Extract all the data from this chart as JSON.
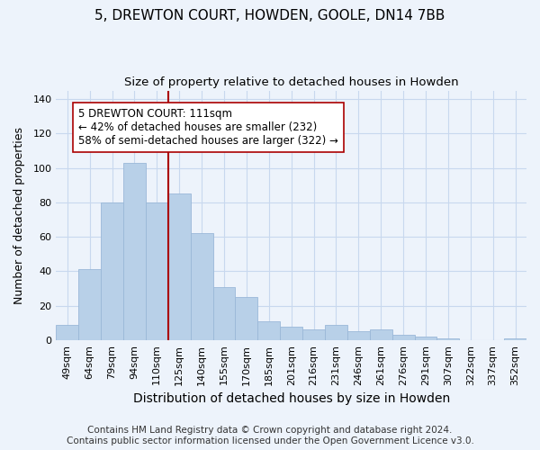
{
  "title": "5, DREWTON COURT, HOWDEN, GOOLE, DN14 7BB",
  "subtitle": "Size of property relative to detached houses in Howden",
  "xlabel": "Distribution of detached houses by size in Howden",
  "ylabel": "Number of detached properties",
  "categories": [
    "49sqm",
    "64sqm",
    "79sqm",
    "94sqm",
    "110sqm",
    "125sqm",
    "140sqm",
    "155sqm",
    "170sqm",
    "185sqm",
    "201sqm",
    "216sqm",
    "231sqm",
    "246sqm",
    "261sqm",
    "276sqm",
    "291sqm",
    "307sqm",
    "322sqm",
    "337sqm",
    "352sqm"
  ],
  "values": [
    9,
    41,
    80,
    103,
    80,
    85,
    62,
    31,
    25,
    11,
    8,
    6,
    9,
    5,
    6,
    3,
    2,
    1,
    0,
    0,
    1
  ],
  "bar_color": "#b8d0e8",
  "bar_edge_color": "#9ab8d8",
  "vline_x_index": 4,
  "vline_color": "#aa0000",
  "annotation_line1": "5 DREWTON COURT: 111sqm",
  "annotation_line2": "← 42% of detached houses are smaller (232)",
  "annotation_line3": "58% of semi-detached houses are larger (322) →",
  "annotation_box_color": "#ffffff",
  "annotation_box_edge": "#aa0000",
  "ylim": [
    0,
    145
  ],
  "yticks": [
    0,
    20,
    40,
    60,
    80,
    100,
    120,
    140
  ],
  "footer_line1": "Contains HM Land Registry data © Crown copyright and database right 2024.",
  "footer_line2": "Contains public sector information licensed under the Open Government Licence v3.0.",
  "background_color": "#edf3fb",
  "grid_color": "#c8d8ee",
  "title_fontsize": 11,
  "subtitle_fontsize": 9.5,
  "xlabel_fontsize": 10,
  "ylabel_fontsize": 9,
  "tick_fontsize": 8,
  "annotation_fontsize": 8.5,
  "footer_fontsize": 7.5
}
